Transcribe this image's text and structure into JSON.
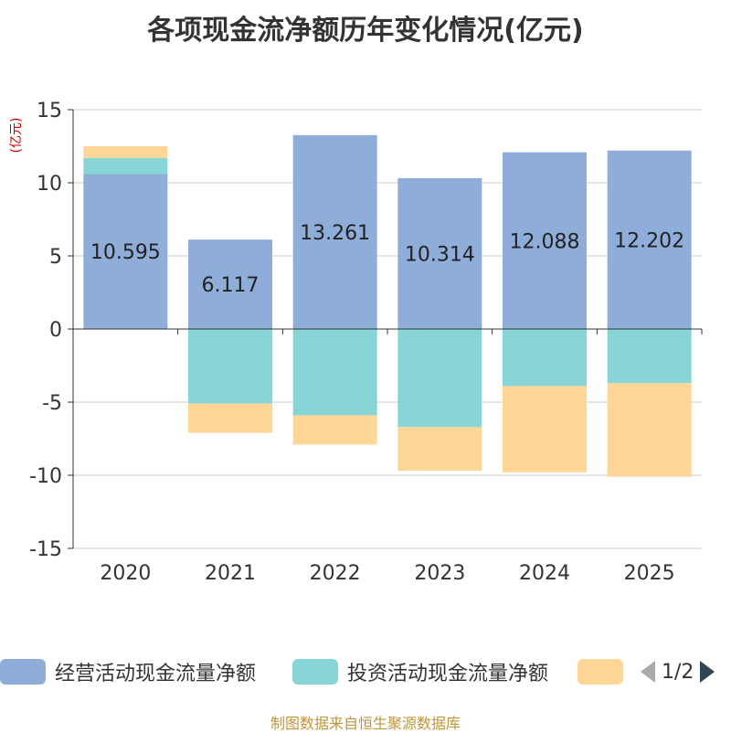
{
  "chart_data": {
    "type": "bar",
    "stacked": true,
    "title": "各项现金流净额历年变化情况(亿元)",
    "ylabel": "(亿元)",
    "categories": [
      "2020",
      "2021",
      "2022",
      "2023",
      "2024",
      "2025"
    ],
    "ylim": [
      -15,
      15
    ],
    "yticks": [
      15,
      10,
      5,
      0,
      -5,
      -10,
      -15
    ],
    "grid": true,
    "series": [
      {
        "name": "经营活动现金流量净额",
        "color": "#8eadd9",
        "values": [
          10.595,
          6.117,
          13.261,
          10.314,
          12.088,
          12.202
        ],
        "labels": [
          "10.595",
          "6.117",
          "13.261",
          "10.314",
          "12.088",
          "12.202"
        ]
      },
      {
        "name": "投资活动现金流量净额",
        "color": "#88d5d8",
        "values": [
          1.1,
          -5.1,
          -5.9,
          -6.7,
          -3.9,
          -3.7
        ]
      },
      {
        "name": "",
        "color": "#fed695",
        "values": [
          0.8,
          -2.0,
          -2.0,
          -3.0,
          -5.9,
          -6.4
        ]
      }
    ]
  },
  "legend": {
    "items": [
      {
        "label": "经营活动现金流量净额",
        "color": "#8eadd9"
      },
      {
        "label": "投资活动现金流量净额",
        "color": "#88d5d8"
      },
      {
        "label": "",
        "color": "#fed695"
      }
    ],
    "page": "1/2"
  },
  "footer": "制图数据来自恒生聚源数据库"
}
